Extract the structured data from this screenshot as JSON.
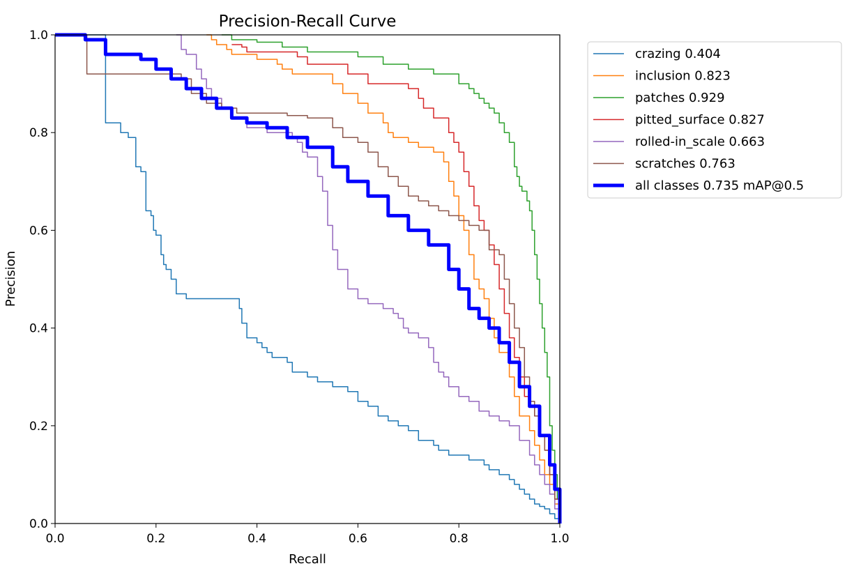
{
  "chart_data": {
    "type": "line",
    "title": "Precision-Recall Curve",
    "xlabel": "Recall",
    "ylabel": "Precision",
    "xlim": [
      0,
      1
    ],
    "ylim": [
      0,
      1
    ],
    "xticks": [
      0.0,
      0.2,
      0.4,
      0.6,
      0.8,
      1.0
    ],
    "yticks": [
      0.0,
      0.2,
      0.4,
      0.6,
      0.8,
      1.0
    ],
    "xtick_labels": [
      "0.0",
      "0.2",
      "0.4",
      "0.6",
      "0.8",
      "1.0"
    ],
    "ytick_labels": [
      "0.0",
      "0.2",
      "0.4",
      "0.6",
      "0.8",
      "1.0"
    ],
    "legend_position": "outside-top-right",
    "series": [
      {
        "name": "crazing",
        "legend_label": "crazing 0.404",
        "ap": 0.404,
        "color": "#1f77b4",
        "x": [
          0,
          0.098,
          0.1,
          0.1,
          0.12,
          0.13,
          0.133,
          0.145,
          0.15,
          0.16,
          0.17,
          0.172,
          0.18,
          0.19,
          0.195,
          0.2,
          0.21,
          0.215,
          0.22,
          0.23,
          0.24,
          0.26,
          0.265,
          0.3,
          0.36,
          0.365,
          0.37,
          0.38,
          0.39,
          0.4,
          0.41,
          0.42,
          0.43,
          0.46,
          0.47,
          0.5,
          0.52,
          0.55,
          0.56,
          0.58,
          0.6,
          0.62,
          0.64,
          0.66,
          0.68,
          0.7,
          0.72,
          0.75,
          0.76,
          0.78,
          0.8,
          0.82,
          0.85,
          0.86,
          0.88,
          0.9,
          0.91,
          0.92,
          0.93,
          0.94,
          0.95,
          0.96,
          0.97,
          0.98,
          0.99,
          1.0
        ],
        "y": [
          1.0,
          1.0,
          0.9,
          0.82,
          0.82,
          0.8,
          0.8,
          0.79,
          0.79,
          0.73,
          0.72,
          0.72,
          0.64,
          0.63,
          0.6,
          0.59,
          0.55,
          0.53,
          0.52,
          0.5,
          0.47,
          0.46,
          0.46,
          0.46,
          0.46,
          0.44,
          0.41,
          0.38,
          0.38,
          0.37,
          0.36,
          0.35,
          0.34,
          0.33,
          0.31,
          0.3,
          0.29,
          0.28,
          0.28,
          0.27,
          0.25,
          0.24,
          0.22,
          0.21,
          0.2,
          0.19,
          0.17,
          0.16,
          0.15,
          0.14,
          0.14,
          0.13,
          0.12,
          0.11,
          0.1,
          0.09,
          0.08,
          0.07,
          0.06,
          0.05,
          0.04,
          0.035,
          0.03,
          0.02,
          0.01,
          0.0
        ]
      },
      {
        "name": "inclusion",
        "legend_label": "inclusion 0.823",
        "ap": 0.823,
        "color": "#ff7f0e",
        "x": [
          0.3,
          0.31,
          0.32,
          0.34,
          0.35,
          0.4,
          0.44,
          0.45,
          0.47,
          0.5,
          0.55,
          0.57,
          0.6,
          0.62,
          0.65,
          0.66,
          0.67,
          0.7,
          0.72,
          0.75,
          0.77,
          0.78,
          0.79,
          0.8,
          0.81,
          0.82,
          0.83,
          0.84,
          0.85,
          0.86,
          0.87,
          0.88,
          0.9,
          0.91,
          0.92,
          0.94,
          0.95,
          0.96,
          0.97,
          0.98,
          0.99,
          1.0
        ],
        "y": [
          1.0,
          0.99,
          0.98,
          0.97,
          0.96,
          0.95,
          0.94,
          0.93,
          0.92,
          0.92,
          0.9,
          0.88,
          0.86,
          0.84,
          0.82,
          0.8,
          0.79,
          0.78,
          0.77,
          0.76,
          0.74,
          0.7,
          0.67,
          0.63,
          0.6,
          0.55,
          0.5,
          0.48,
          0.46,
          0.42,
          0.38,
          0.35,
          0.3,
          0.26,
          0.22,
          0.19,
          0.16,
          0.13,
          0.1,
          0.08,
          0.04,
          0.0
        ]
      },
      {
        "name": "patches",
        "legend_label": "patches 0.929",
        "ap": 0.929,
        "color": "#2ca02c",
        "x": [
          0.33,
          0.35,
          0.4,
          0.45,
          0.5,
          0.6,
          0.65,
          0.7,
          0.75,
          0.8,
          0.82,
          0.83,
          0.84,
          0.85,
          0.86,
          0.87,
          0.88,
          0.89,
          0.9,
          0.91,
          0.915,
          0.92,
          0.925,
          0.93,
          0.935,
          0.94,
          0.945,
          0.95,
          0.955,
          0.96,
          0.965,
          0.97,
          0.975,
          0.98,
          0.985,
          0.99,
          0.995,
          1.0
        ],
        "y": [
          1.0,
          0.99,
          0.985,
          0.975,
          0.965,
          0.955,
          0.94,
          0.93,
          0.92,
          0.9,
          0.89,
          0.88,
          0.87,
          0.86,
          0.85,
          0.84,
          0.82,
          0.8,
          0.78,
          0.73,
          0.71,
          0.69,
          0.68,
          0.68,
          0.66,
          0.64,
          0.6,
          0.55,
          0.5,
          0.45,
          0.4,
          0.35,
          0.3,
          0.2,
          0.15,
          0.1,
          0.05,
          0.0
        ]
      },
      {
        "name": "pitted_surface",
        "legend_label": "pitted_surface 0.827",
        "ap": 0.827,
        "color": "#d62728",
        "x": [
          0.35,
          0.37,
          0.38,
          0.48,
          0.5,
          0.58,
          0.62,
          0.64,
          0.7,
          0.72,
          0.73,
          0.75,
          0.78,
          0.79,
          0.8,
          0.81,
          0.82,
          0.83,
          0.84,
          0.85,
          0.86,
          0.87,
          0.88,
          0.89,
          0.9,
          0.91,
          0.92,
          0.93,
          0.94,
          0.95,
          0.96,
          0.97,
          0.98,
          0.99,
          1.0
        ],
        "y": [
          0.98,
          0.975,
          0.965,
          0.955,
          0.94,
          0.92,
          0.9,
          0.9,
          0.89,
          0.87,
          0.85,
          0.83,
          0.8,
          0.78,
          0.76,
          0.72,
          0.69,
          0.65,
          0.62,
          0.6,
          0.57,
          0.53,
          0.48,
          0.43,
          0.38,
          0.34,
          0.3,
          0.26,
          0.24,
          0.22,
          0.18,
          0.15,
          0.1,
          0.05,
          0.0
        ]
      },
      {
        "name": "rolled-in_scale",
        "legend_label": "rolled-in_scale 0.663",
        "ap": 0.663,
        "color": "#9467bd",
        "x": [
          0.24,
          0.25,
          0.26,
          0.28,
          0.29,
          0.3,
          0.31,
          0.33,
          0.35,
          0.38,
          0.42,
          0.45,
          0.47,
          0.48,
          0.49,
          0.5,
          0.52,
          0.53,
          0.54,
          0.55,
          0.56,
          0.58,
          0.6,
          0.62,
          0.65,
          0.67,
          0.68,
          0.69,
          0.7,
          0.71,
          0.72,
          0.74,
          0.75,
          0.76,
          0.77,
          0.78,
          0.8,
          0.82,
          0.84,
          0.86,
          0.88,
          0.9,
          0.92,
          0.94,
          0.95,
          0.96,
          0.97,
          0.98,
          0.99,
          1.0
        ],
        "y": [
          1.0,
          0.97,
          0.96,
          0.93,
          0.91,
          0.89,
          0.87,
          0.85,
          0.83,
          0.81,
          0.8,
          0.8,
          0.79,
          0.78,
          0.76,
          0.75,
          0.71,
          0.68,
          0.61,
          0.56,
          0.52,
          0.48,
          0.46,
          0.45,
          0.44,
          0.43,
          0.42,
          0.4,
          0.39,
          0.39,
          0.38,
          0.36,
          0.33,
          0.31,
          0.3,
          0.28,
          0.26,
          0.25,
          0.23,
          0.22,
          0.21,
          0.2,
          0.17,
          0.14,
          0.12,
          0.1,
          0.08,
          0.06,
          0.03,
          0.0
        ]
      },
      {
        "name": "scratches",
        "legend_label": "scratches 0.763",
        "ap": 0.763,
        "color": "#8c564b",
        "x": [
          0.06,
          0.063,
          0.18,
          0.25,
          0.27,
          0.3,
          0.33,
          0.36,
          0.4,
          0.44,
          0.46,
          0.5,
          0.55,
          0.57,
          0.6,
          0.62,
          0.64,
          0.66,
          0.68,
          0.7,
          0.72,
          0.74,
          0.76,
          0.78,
          0.8,
          0.82,
          0.84,
          0.86,
          0.88,
          0.89,
          0.9,
          0.91,
          0.92,
          0.93,
          0.94,
          0.95,
          0.96,
          0.97,
          0.98,
          0.99,
          1.0
        ],
        "y": [
          1.0,
          0.92,
          0.92,
          0.91,
          0.88,
          0.86,
          0.85,
          0.84,
          0.84,
          0.84,
          0.835,
          0.83,
          0.81,
          0.79,
          0.78,
          0.76,
          0.73,
          0.71,
          0.69,
          0.67,
          0.66,
          0.65,
          0.64,
          0.63,
          0.62,
          0.61,
          0.6,
          0.56,
          0.55,
          0.5,
          0.45,
          0.4,
          0.36,
          0.3,
          0.25,
          0.22,
          0.18,
          0.15,
          0.1,
          0.05,
          0.0
        ]
      },
      {
        "name": "all classes",
        "legend_label": "all classes 0.735 mAP@0.5",
        "ap": 0.735,
        "color": "#0000ff",
        "bold": true,
        "x": [
          0.0,
          0.06,
          0.1,
          0.17,
          0.2,
          0.23,
          0.26,
          0.29,
          0.32,
          0.35,
          0.38,
          0.42,
          0.46,
          0.5,
          0.55,
          0.58,
          0.62,
          0.66,
          0.7,
          0.74,
          0.78,
          0.8,
          0.82,
          0.84,
          0.86,
          0.88,
          0.9,
          0.92,
          0.94,
          0.96,
          0.98,
          0.99,
          1.0
        ],
        "y": [
          1.0,
          0.99,
          0.96,
          0.95,
          0.93,
          0.91,
          0.89,
          0.87,
          0.85,
          0.83,
          0.82,
          0.81,
          0.79,
          0.77,
          0.73,
          0.7,
          0.67,
          0.63,
          0.6,
          0.57,
          0.52,
          0.48,
          0.44,
          0.42,
          0.4,
          0.37,
          0.33,
          0.28,
          0.24,
          0.18,
          0.12,
          0.07,
          0.0
        ]
      }
    ]
  }
}
